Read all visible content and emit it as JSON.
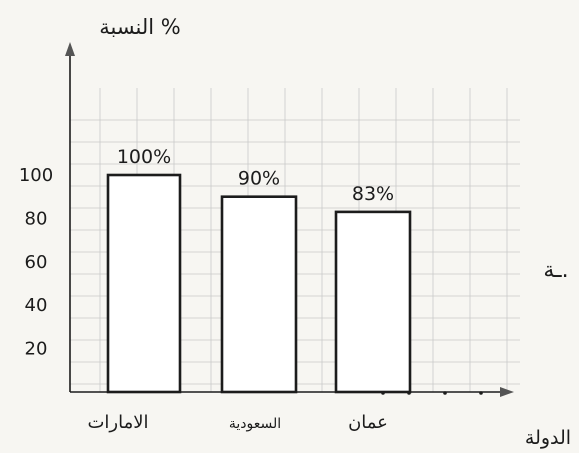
{
  "chart_data": {
    "type": "bar",
    "title": "",
    "ylabel": "النسبة %",
    "xlabel": "الدولة",
    "categories": [
      "الامارات",
      "السعودية",
      "عمان"
    ],
    "values": [
      100,
      90,
      83
    ],
    "value_labels": [
      "100%",
      "90%",
      "83%"
    ],
    "y_ticks": [
      20,
      40,
      60,
      80,
      100
    ],
    "ylim": [
      0,
      120
    ],
    "grid": true,
    "bar_fill": "#ffffff",
    "ink_color": "#1c1c1c",
    "grid_color": "#c9c9c9"
  },
  "margin_note": "ـة."
}
